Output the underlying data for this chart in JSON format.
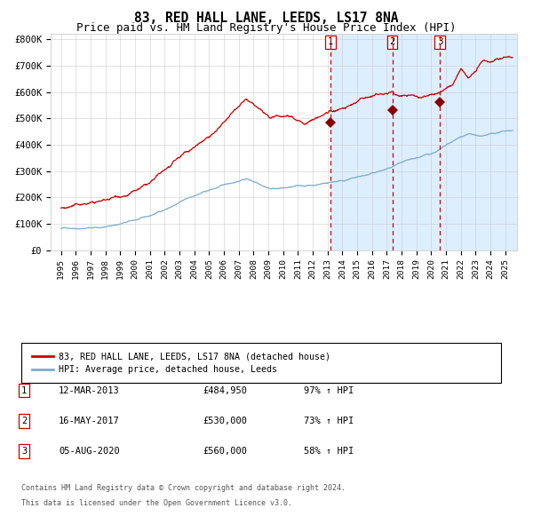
{
  "title": "83, RED HALL LANE, LEEDS, LS17 8NA",
  "subtitle": "Price paid vs. HM Land Registry's House Price Index (HPI)",
  "title_fontsize": 10.5,
  "subtitle_fontsize": 9,
  "ylabel_ticks": [
    "£0",
    "£100K",
    "£200K",
    "£300K",
    "£400K",
    "£500K",
    "£600K",
    "£700K",
    "£800K"
  ],
  "ytick_values": [
    0,
    100000,
    200000,
    300000,
    400000,
    500000,
    600000,
    700000,
    800000
  ],
  "ylim": [
    0,
    820000
  ],
  "red_line_color": "#cc0000",
  "blue_line_color": "#7aadcf",
  "bg_shade_color": "#ddeeff",
  "vline_color": "#cc0000",
  "marker_color": "#880000",
  "sale1_date": "12-MAR-2013",
  "sale1_price": 484950,
  "sale1_price_str": "£484,950",
  "sale1_pct": "97% ↑ HPI",
  "sale2_date": "16-MAY-2017",
  "sale2_price": 530000,
  "sale2_price_str": "£530,000",
  "sale2_pct": "73% ↑ HPI",
  "sale3_date": "05-AUG-2020",
  "sale3_price": 560000,
  "sale3_price_str": "£560,000",
  "sale3_pct": "58% ↑ HPI",
  "sale1_x": 2013.19,
  "sale2_x": 2017.37,
  "sale3_x": 2020.59,
  "legend1": "83, RED HALL LANE, LEEDS, LS17 8NA (detached house)",
  "legend2": "HPI: Average price, detached house, Leeds",
  "footnote1": "Contains HM Land Registry data © Crown copyright and database right 2024.",
  "footnote2": "This data is licensed under the Open Government Licence v3.0."
}
